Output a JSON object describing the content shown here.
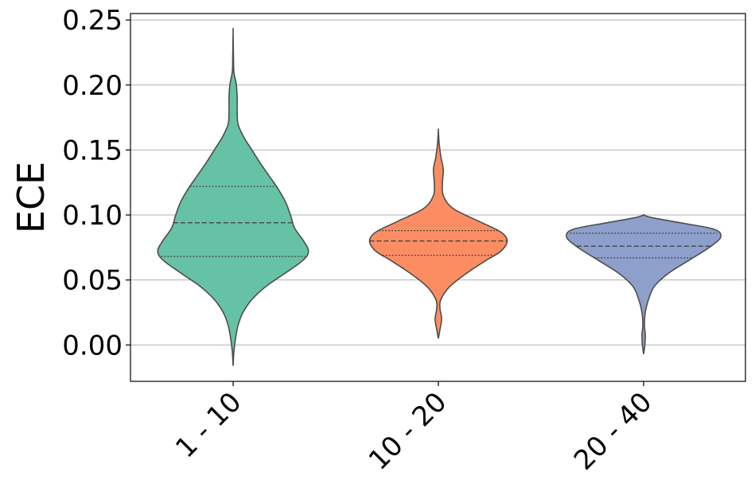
{
  "chart_data": {
    "type": "violin",
    "title": "",
    "xlabel": "",
    "ylabel": "ECE",
    "ylim": [
      -0.028,
      0.255
    ],
    "yticks": [
      "0.00",
      "0.05",
      "0.10",
      "0.15",
      "0.20",
      "0.25"
    ],
    "ytick_values": [
      0.0,
      0.05,
      0.1,
      0.15,
      0.2,
      0.25
    ],
    "grid": "horizontal",
    "categories": [
      "1 - 10",
      "10 - 20",
      "20 - 40"
    ],
    "colors": [
      "#66c2a5",
      "#fc8d62",
      "#8da0cb"
    ],
    "series": [
      {
        "category": "1 - 10",
        "min": -0.016,
        "max": 0.241,
        "q1": 0.068,
        "median": 0.094,
        "q3": 0.122,
        "density": [
          [
            -0.016,
            0.0
          ],
          [
            -0.005,
            0.01
          ],
          [
            0.005,
            0.03
          ],
          [
            0.015,
            0.06
          ],
          [
            0.025,
            0.12
          ],
          [
            0.035,
            0.23
          ],
          [
            0.045,
            0.4
          ],
          [
            0.055,
            0.63
          ],
          [
            0.065,
            0.85
          ],
          [
            0.072,
            0.92
          ],
          [
            0.08,
            0.86
          ],
          [
            0.09,
            0.75
          ],
          [
            0.1,
            0.7
          ],
          [
            0.11,
            0.64
          ],
          [
            0.12,
            0.55
          ],
          [
            0.13,
            0.44
          ],
          [
            0.14,
            0.33
          ],
          [
            0.15,
            0.23
          ],
          [
            0.16,
            0.13
          ],
          [
            0.17,
            0.06
          ],
          [
            0.18,
            0.05
          ],
          [
            0.19,
            0.05
          ],
          [
            0.2,
            0.04
          ],
          [
            0.21,
            0.01
          ],
          [
            0.22,
            0.005
          ],
          [
            0.241,
            0.0
          ]
        ]
      },
      {
        "category": "10 - 20",
        "min": 0.005,
        "max": 0.165,
        "q1": 0.069,
        "median": 0.08,
        "q3": 0.088,
        "density": [
          [
            0.005,
            0.0
          ],
          [
            0.012,
            0.02
          ],
          [
            0.02,
            0.04
          ],
          [
            0.028,
            0.02
          ],
          [
            0.035,
            0.03
          ],
          [
            0.045,
            0.14
          ],
          [
            0.055,
            0.34
          ],
          [
            0.065,
            0.58
          ],
          [
            0.072,
            0.76
          ],
          [
            0.08,
            0.84
          ],
          [
            0.087,
            0.76
          ],
          [
            0.095,
            0.5
          ],
          [
            0.105,
            0.18
          ],
          [
            0.115,
            0.06
          ],
          [
            0.125,
            0.05
          ],
          [
            0.135,
            0.06
          ],
          [
            0.145,
            0.03
          ],
          [
            0.155,
            0.01
          ],
          [
            0.165,
            0.0
          ]
        ]
      },
      {
        "category": "20 - 40",
        "min": -0.007,
        "max": 0.1,
        "q1": 0.067,
        "median": 0.076,
        "q3": 0.086,
        "density": [
          [
            -0.007,
            0.0
          ],
          [
            0.0,
            0.015
          ],
          [
            0.008,
            0.02
          ],
          [
            0.015,
            0.01
          ],
          [
            0.025,
            0.02
          ],
          [
            0.035,
            0.06
          ],
          [
            0.045,
            0.13
          ],
          [
            0.055,
            0.3
          ],
          [
            0.065,
            0.55
          ],
          [
            0.075,
            0.8
          ],
          [
            0.083,
            0.94
          ],
          [
            0.089,
            0.86
          ],
          [
            0.094,
            0.45
          ],
          [
            0.098,
            0.1
          ],
          [
            0.1,
            0.0
          ]
        ]
      }
    ]
  }
}
